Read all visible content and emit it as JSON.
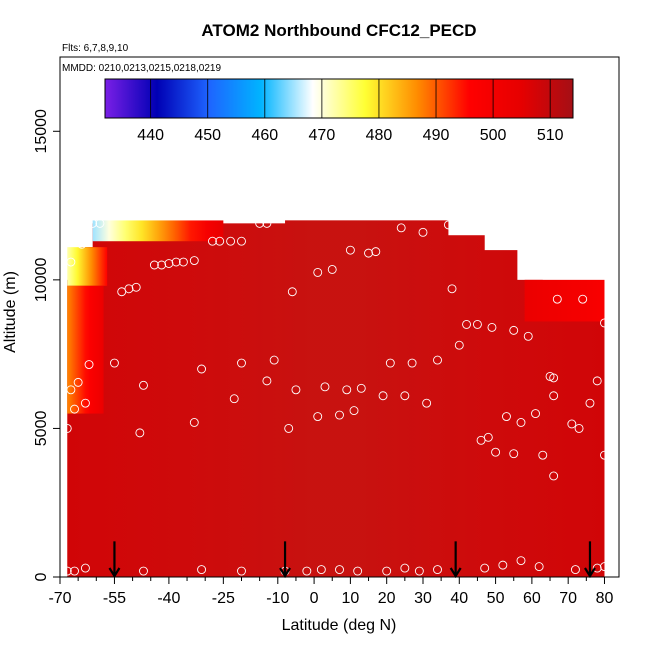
{
  "chart_data": {
    "type": "heatmap",
    "title": "ATOM2 Northbound CFC12_PECD",
    "flights_note": "Flts: 6,7,8,9,10",
    "dates_note": "MMDD: 0210,0213,0215,0218,0219",
    "xlabel": "Latitude (deg N)",
    "ylabel": "Altitude (m)",
    "xlim": [
      -70,
      84
    ],
    "ylim": [
      0,
      17500
    ],
    "x_ticks": [
      -70,
      -55,
      -40,
      -25,
      -10,
      0,
      10,
      20,
      30,
      40,
      50,
      60,
      70,
      80
    ],
    "x_tick_labels": [
      "-70",
      "-55",
      "-40",
      "-25",
      "-10",
      "0",
      "10",
      "20",
      "30",
      "40",
      "50",
      "60",
      "70",
      "80"
    ],
    "x_minor_ticks": [
      -65,
      -60,
      -50,
      -45,
      -35,
      -30,
      -20,
      -15,
      -5,
      5,
      15,
      25,
      35,
      45,
      55,
      65,
      75
    ],
    "y_ticks": [
      0,
      5000,
      10000,
      15000
    ],
    "y_tick_labels": [
      "0",
      "5000",
      "10000",
      "15000"
    ],
    "colorbar": {
      "range": [
        432,
        514
      ],
      "ticks": [
        440,
        450,
        460,
        470,
        480,
        490,
        500,
        510
      ],
      "tick_labels": [
        "440",
        "450",
        "460",
        "470",
        "480",
        "490",
        "500",
        "510"
      ],
      "colors": [
        "#7a1fe6",
        "#0000b4",
        "#1e64ff",
        "#00b4ff",
        "#ffffff",
        "#ffff33",
        "#ff8c00",
        "#ff0000",
        "#e60000",
        "#a50f15"
      ]
    },
    "field_background": 508,
    "ceiling_profile": [
      {
        "lat": -68,
        "alt": 10000
      },
      {
        "lat": -66,
        "alt": 10500
      },
      {
        "lat": -64,
        "alt": 11100
      },
      {
        "lat": -61,
        "alt": 11900
      },
      {
        "lat": -8,
        "alt": 12000
      },
      {
        "lat": 35,
        "alt": 12000
      },
      {
        "lat": 37,
        "alt": 11500
      },
      {
        "lat": 47,
        "alt": 11000
      },
      {
        "lat": 56,
        "alt": 10000
      },
      {
        "lat": 63,
        "alt": 9400
      },
      {
        "lat": 69,
        "alt": 8700
      },
      {
        "lat": 80,
        "alt": 8700
      }
    ],
    "low_value_bands": [
      {
        "lat_from": -68,
        "lat_to": -57,
        "alt_from": 9800,
        "alt_to": 11100,
        "value_start": 472,
        "value_end": 496
      },
      {
        "lat_from": -61,
        "lat_to": -25,
        "alt_from": 11300,
        "alt_to": 12000,
        "value_start": 465,
        "value_end": 504
      },
      {
        "lat_from": -68,
        "lat_to": -58,
        "alt_from": 5500,
        "alt_to": 9800,
        "value_start": 487,
        "value_end": 503
      },
      {
        "lat_from": 58,
        "lat_to": 80,
        "alt_from": 8600,
        "alt_to": 10000,
        "value_start": 503,
        "value_end": 498
      }
    ],
    "flight_arrows_lat": [
      -55,
      -8,
      39,
      76
    ],
    "samples": [
      {
        "lat": -68,
        "alt": 200
      },
      {
        "lat": -66,
        "alt": 200
      },
      {
        "lat": -63,
        "alt": 300
      },
      {
        "lat": -47,
        "alt": 200
      },
      {
        "lat": -31,
        "alt": 250
      },
      {
        "lat": -20,
        "alt": 200
      },
      {
        "lat": -8,
        "alt": 200
      },
      {
        "lat": -2,
        "alt": 200
      },
      {
        "lat": 2,
        "alt": 250
      },
      {
        "lat": 7,
        "alt": 250
      },
      {
        "lat": 12,
        "alt": 200
      },
      {
        "lat": 20,
        "alt": 200
      },
      {
        "lat": 25,
        "alt": 300
      },
      {
        "lat": 29,
        "alt": 200
      },
      {
        "lat": 34,
        "alt": 250
      },
      {
        "lat": 47,
        "alt": 300
      },
      {
        "lat": 52,
        "alt": 400
      },
      {
        "lat": 57,
        "alt": 550
      },
      {
        "lat": 62,
        "alt": 350
      },
      {
        "lat": 72,
        "alt": 250
      },
      {
        "lat": 78,
        "alt": 300
      },
      {
        "lat": 80,
        "alt": 350
      },
      {
        "lat": -68,
        "alt": 5000
      },
      {
        "lat": -66,
        "alt": 5650
      },
      {
        "lat": -65,
        "alt": 6550
      },
      {
        "lat": -67,
        "alt": 6300
      },
      {
        "lat": -63,
        "alt": 5850
      },
      {
        "lat": -62,
        "alt": 7150
      },
      {
        "lat": -55,
        "alt": 7200
      },
      {
        "lat": -48,
        "alt": 4850
      },
      {
        "lat": -47,
        "alt": 6450
      },
      {
        "lat": -33,
        "alt": 5200
      },
      {
        "lat": -31,
        "alt": 7000
      },
      {
        "lat": -22,
        "alt": 6000
      },
      {
        "lat": -20,
        "alt": 7200
      },
      {
        "lat": -13,
        "alt": 6600
      },
      {
        "lat": -11,
        "alt": 7300
      },
      {
        "lat": -7,
        "alt": 5000
      },
      {
        "lat": -5,
        "alt": 6300
      },
      {
        "lat": 1,
        "alt": 5400
      },
      {
        "lat": 3,
        "alt": 6400
      },
      {
        "lat": 7,
        "alt": 5450
      },
      {
        "lat": 9,
        "alt": 6300
      },
      {
        "lat": 11,
        "alt": 5600
      },
      {
        "lat": 13,
        "alt": 6350
      },
      {
        "lat": 19,
        "alt": 6100
      },
      {
        "lat": 21,
        "alt": 7200
      },
      {
        "lat": 25,
        "alt": 6100
      },
      {
        "lat": 27,
        "alt": 7200
      },
      {
        "lat": 31,
        "alt": 5850
      },
      {
        "lat": 34,
        "alt": 7300
      },
      {
        "lat": 38,
        "alt": 9700
      },
      {
        "lat": 40,
        "alt": 7800
      },
      {
        "lat": 42,
        "alt": 8500
      },
      {
        "lat": 45,
        "alt": 8500
      },
      {
        "lat": 46,
        "alt": 4600
      },
      {
        "lat": 48,
        "alt": 4700
      },
      {
        "lat": 49,
        "alt": 8400
      },
      {
        "lat": 50,
        "alt": 4200
      },
      {
        "lat": 53,
        "alt": 5400
      },
      {
        "lat": 55,
        "alt": 8300
      },
      {
        "lat": 55,
        "alt": 4150
      },
      {
        "lat": 57,
        "alt": 5200
      },
      {
        "lat": 59,
        "alt": 8100
      },
      {
        "lat": 61,
        "alt": 5500
      },
      {
        "lat": 63,
        "alt": 4100
      },
      {
        "lat": 65,
        "alt": 6750
      },
      {
        "lat": 66,
        "alt": 6700
      },
      {
        "lat": 66,
        "alt": 6100
      },
      {
        "lat": 66,
        "alt": 3400
      },
      {
        "lat": 67,
        "alt": 9350
      },
      {
        "lat": 71,
        "alt": 5150
      },
      {
        "lat": 73,
        "alt": 5000
      },
      {
        "lat": 74,
        "alt": 9350
      },
      {
        "lat": 76,
        "alt": 5850
      },
      {
        "lat": 78,
        "alt": 6600
      },
      {
        "lat": 80,
        "alt": 8550
      },
      {
        "lat": 80,
        "alt": 4100
      },
      {
        "lat": -67,
        "alt": 10600
      },
      {
        "lat": -64,
        "alt": 11200
      },
      {
        "lat": -61,
        "alt": 11900
      },
      {
        "lat": -59,
        "alt": 11900
      },
      {
        "lat": -53,
        "alt": 9600
      },
      {
        "lat": -51,
        "alt": 9700
      },
      {
        "lat": -49,
        "alt": 9750
      },
      {
        "lat": -44,
        "alt": 10500
      },
      {
        "lat": -42,
        "alt": 10500
      },
      {
        "lat": -40,
        "alt": 10550
      },
      {
        "lat": -38,
        "alt": 10600
      },
      {
        "lat": -36,
        "alt": 10600
      },
      {
        "lat": -33,
        "alt": 10650
      },
      {
        "lat": -28,
        "alt": 11300
      },
      {
        "lat": -26,
        "alt": 11300
      },
      {
        "lat": -23,
        "alt": 11300
      },
      {
        "lat": -20,
        "alt": 11300
      },
      {
        "lat": -15,
        "alt": 11900
      },
      {
        "lat": -13,
        "alt": 11900
      },
      {
        "lat": -6,
        "alt": 9600
      },
      {
        "lat": 1,
        "alt": 10250
      },
      {
        "lat": 5,
        "alt": 10350
      },
      {
        "lat": 10,
        "alt": 11000
      },
      {
        "lat": 15,
        "alt": 10900
      },
      {
        "lat": 17,
        "alt": 10950
      },
      {
        "lat": 24,
        "alt": 11750
      },
      {
        "lat": 30,
        "alt": 11600
      },
      {
        "lat": 37,
        "alt": 11850
      }
    ]
  }
}
